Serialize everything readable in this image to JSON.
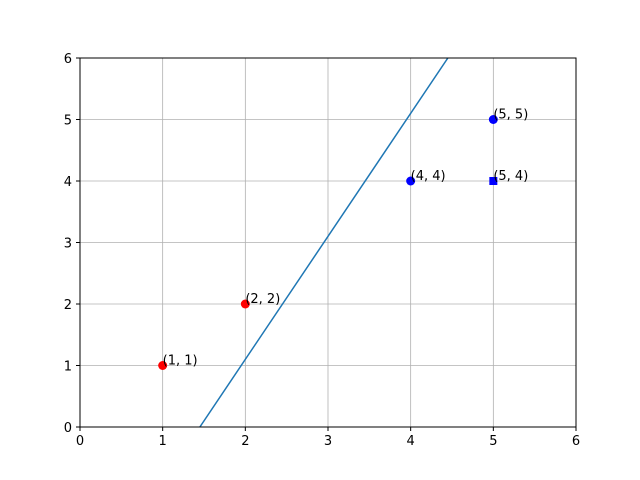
{
  "chart_data": {
    "type": "scatter",
    "xlim": [
      0,
      6
    ],
    "ylim": [
      0,
      6
    ],
    "xticks": [
      0,
      1,
      2,
      3,
      4,
      5,
      6
    ],
    "yticks": [
      0,
      1,
      2,
      3,
      4,
      5,
      6
    ],
    "grid": true,
    "series": [
      {
        "kind": "scatter",
        "marker": "circle",
        "color": "#ff0000",
        "x": [
          1,
          2
        ],
        "values": [
          1,
          2
        ],
        "value_labels": [
          "(1, 1)",
          "(2, 2)"
        ]
      },
      {
        "kind": "scatter",
        "marker": "circle",
        "color": "#0000ff",
        "x": [
          4,
          5
        ],
        "values": [
          4,
          5
        ],
        "value_labels": [
          "(4, 4)",
          "(5, 5)"
        ]
      },
      {
        "kind": "scatter",
        "marker": "square",
        "color": "#0000ff",
        "x": [
          5
        ],
        "values": [
          4
        ],
        "value_labels": [
          "(5, 4)"
        ]
      },
      {
        "kind": "line",
        "color": "#1f77b4",
        "x": [
          1.45,
          4.45
        ],
        "values": [
          0,
          6
        ]
      }
    ]
  }
}
